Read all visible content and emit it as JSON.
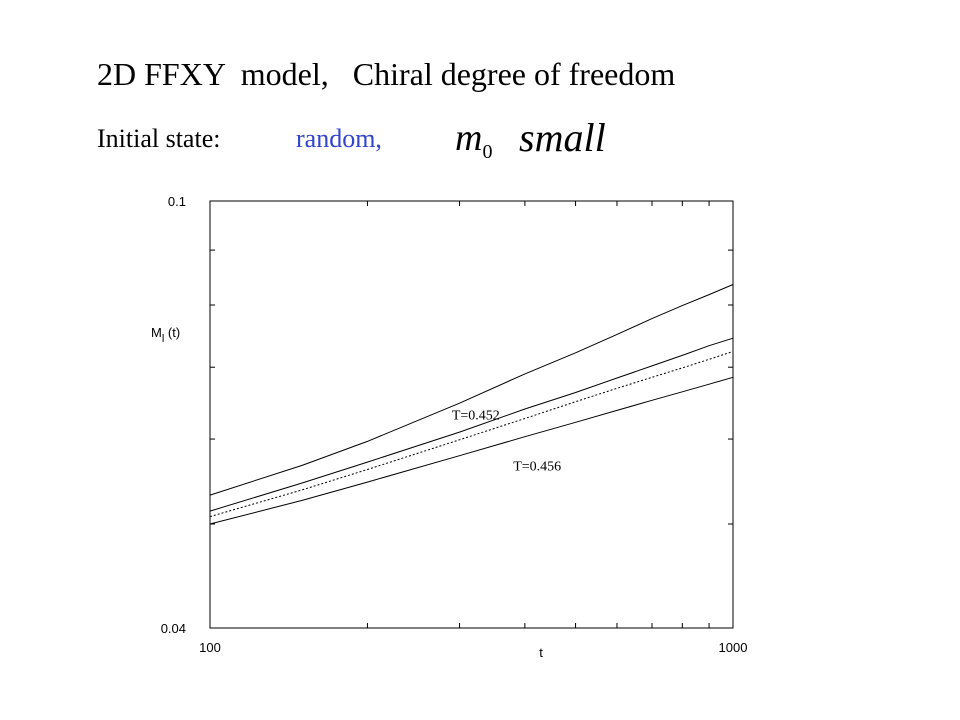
{
  "header": {
    "title": "2D FFXY  model,   Chiral degree of freedom",
    "initial_state_label": "Initial state:",
    "initial_state_value": "random,",
    "m0_symbol": "m",
    "m0_subscript": "0",
    "m0_condition": "small"
  },
  "colors": {
    "accent": "#3344cc",
    "lines": "#000000"
  },
  "chart_data": {
    "type": "line",
    "xscale": "log",
    "yscale": "log",
    "xlim": [
      100,
      1000
    ],
    "ylim": [
      0.04,
      0.1
    ],
    "xlabel": "t",
    "ylabel": "M",
    "ylabel_subscript": "l",
    "ylabel_suffix": "(t)",
    "x_tick_labels": [
      {
        "value": 100,
        "label": "100"
      },
      {
        "value": 1000,
        "label": "1000"
      }
    ],
    "y_tick_labels": [
      {
        "value": 0.1,
        "label": "0.1"
      },
      {
        "value": 0.04,
        "label": "0.04"
      }
    ],
    "x_minor_ticks": [
      200,
      300,
      400,
      500,
      600,
      700,
      800,
      900
    ],
    "y_minor_ticks": [
      0.05,
      0.06,
      0.07,
      0.08,
      0.09
    ],
    "series": [
      {
        "name": "T=0.452",
        "style": "solid",
        "x": [
          100,
          150,
          200,
          300,
          400,
          500,
          600,
          700,
          800,
          900,
          1000
        ],
        "y": [
          0.0532,
          0.0567,
          0.0597,
          0.0648,
          0.069,
          0.0722,
          0.0751,
          0.0777,
          0.0799,
          0.0818,
          0.0836
        ]
      },
      {
        "style": "solid",
        "x": [
          100,
          150,
          200,
          300,
          400,
          500,
          600,
          700,
          800,
          900,
          1000
        ],
        "y": [
          0.0514,
          0.0546,
          0.0571,
          0.0609,
          0.064,
          0.0663,
          0.0684,
          0.0702,
          0.0718,
          0.0733,
          0.0745
        ]
      },
      {
        "style": "dotted",
        "x": [
          100,
          150,
          200,
          300,
          400,
          500,
          600,
          700,
          800,
          900,
          1000
        ],
        "y": [
          0.0508,
          0.0538,
          0.0562,
          0.0599,
          0.0627,
          0.065,
          0.0669,
          0.0685,
          0.0699,
          0.0712,
          0.0724
        ]
      },
      {
        "name": "T=0.456",
        "style": "solid",
        "x": [
          100,
          150,
          200,
          300,
          400,
          500,
          600,
          700,
          800,
          900,
          1000
        ],
        "y": [
          0.05,
          0.0526,
          0.0547,
          0.0579,
          0.0603,
          0.0622,
          0.0638,
          0.0652,
          0.0664,
          0.0675,
          0.0685
        ]
      }
    ],
    "annotations": [
      {
        "text": "T=0.452",
        "x": 290,
        "y": 0.0626,
        "series": 0
      },
      {
        "text": "T=0.456",
        "x": 380,
        "y": 0.0561,
        "series": 3
      }
    ],
    "grid": false,
    "legend": "none"
  }
}
